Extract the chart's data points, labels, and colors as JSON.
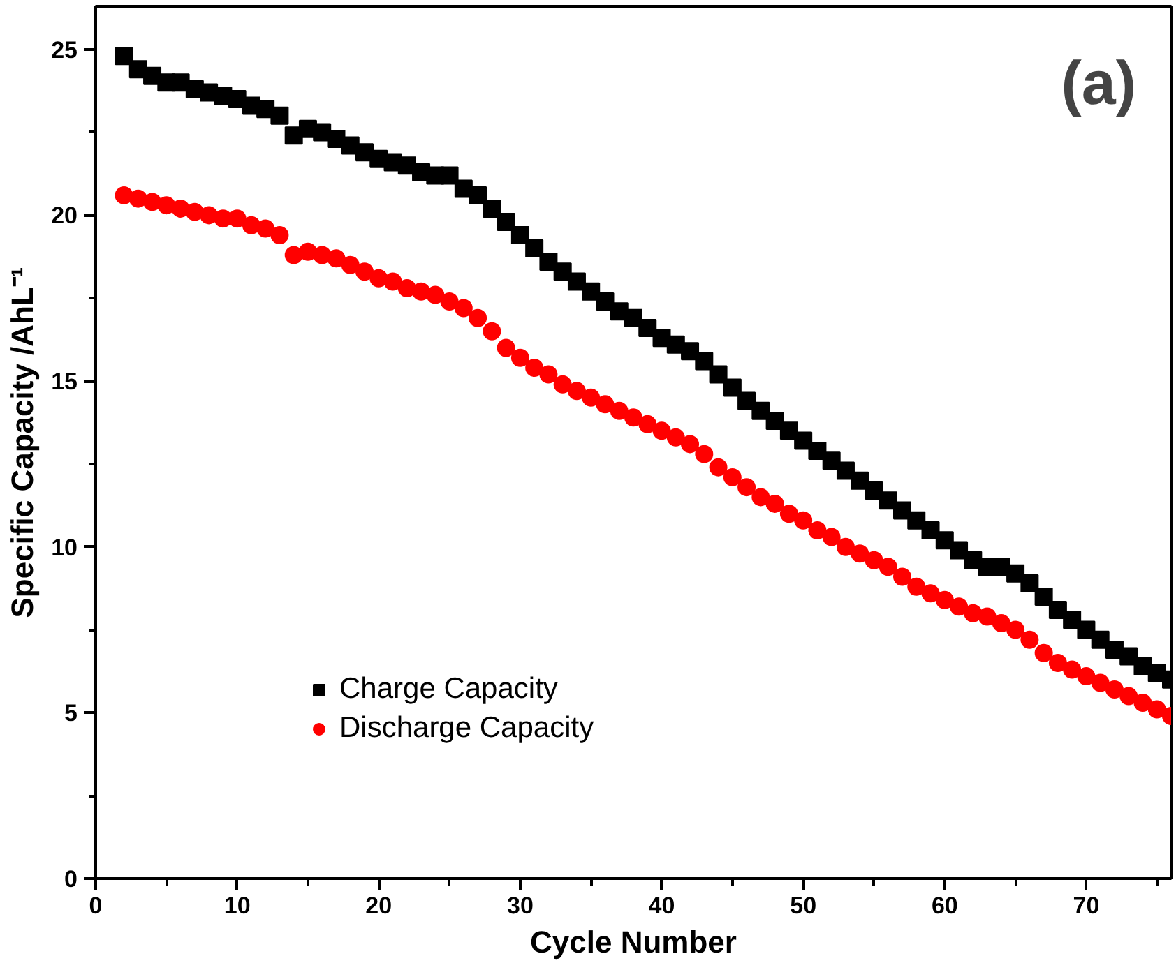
{
  "chart_data": {
    "type": "scatter",
    "xlabel": "Cycle Number",
    "ylabel": "Specific Capacity /AhL⁻¹",
    "annotations": [
      "(a)"
    ],
    "x": [
      2,
      3,
      4,
      5,
      6,
      7,
      8,
      9,
      10,
      11,
      12,
      13,
      14,
      15,
      16,
      17,
      18,
      19,
      20,
      21,
      22,
      23,
      24,
      25,
      26,
      27,
      28,
      29,
      30,
      31,
      32,
      33,
      34,
      35,
      36,
      37,
      38,
      39,
      40,
      41,
      42,
      43,
      44,
      45,
      46,
      47,
      48,
      49,
      50,
      51,
      52,
      53,
      54,
      55,
      56,
      57,
      58,
      59,
      60,
      61,
      62,
      63,
      64,
      65,
      66,
      67,
      68,
      69,
      70,
      71,
      72,
      73,
      74,
      75,
      76
    ],
    "series": [
      {
        "name": "Charge Capacity",
        "color": "#000000",
        "marker": "square",
        "values": [
          24.8,
          24.4,
          24.2,
          24.0,
          24.0,
          23.8,
          23.7,
          23.6,
          23.5,
          23.3,
          23.2,
          23.0,
          22.4,
          22.6,
          22.5,
          22.3,
          22.1,
          21.9,
          21.7,
          21.6,
          21.5,
          21.3,
          21.2,
          21.2,
          20.8,
          20.6,
          20.2,
          19.8,
          19.4,
          19.0,
          18.6,
          18.3,
          18.0,
          17.7,
          17.4,
          17.1,
          16.9,
          16.6,
          16.3,
          16.1,
          15.9,
          15.6,
          15.2,
          14.8,
          14.4,
          14.1,
          13.8,
          13.5,
          13.2,
          12.9,
          12.6,
          12.3,
          12.0,
          11.7,
          11.4,
          11.1,
          10.8,
          10.5,
          10.2,
          9.9,
          9.6,
          9.4,
          9.4,
          9.2,
          8.9,
          8.5,
          8.1,
          7.8,
          7.5,
          7.2,
          6.9,
          6.7,
          6.4,
          6.2,
          6.0
        ]
      },
      {
        "name": "Discharge Capacity",
        "color": "#ff0000",
        "marker": "circle",
        "values": [
          20.6,
          20.5,
          20.4,
          20.3,
          20.2,
          20.1,
          20.0,
          19.9,
          19.9,
          19.7,
          19.6,
          19.4,
          18.8,
          18.9,
          18.8,
          18.7,
          18.5,
          18.3,
          18.1,
          18.0,
          17.8,
          17.7,
          17.6,
          17.4,
          17.2,
          16.9,
          16.5,
          16.0,
          15.7,
          15.4,
          15.2,
          14.9,
          14.7,
          14.5,
          14.3,
          14.1,
          13.9,
          13.7,
          13.5,
          13.3,
          13.1,
          12.8,
          12.4,
          12.1,
          11.8,
          11.5,
          11.3,
          11.0,
          10.8,
          10.5,
          10.3,
          10.0,
          9.8,
          9.6,
          9.4,
          9.1,
          8.8,
          8.6,
          8.4,
          8.2,
          8.0,
          7.9,
          7.7,
          7.5,
          7.2,
          6.8,
          6.5,
          6.3,
          6.1,
          5.9,
          5.7,
          5.5,
          5.3,
          5.1,
          4.9
        ]
      }
    ],
    "xlim": [
      0,
      76
    ],
    "ylim": [
      0,
      26.3
    ],
    "xticks": [
      0,
      10,
      20,
      30,
      40,
      50,
      60,
      70
    ],
    "yticks": [
      0,
      5,
      10,
      15,
      20,
      25
    ],
    "grid": false,
    "legend": "left"
  }
}
